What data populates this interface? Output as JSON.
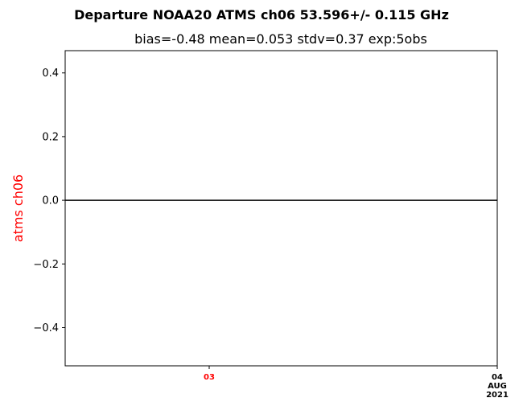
{
  "chart_data": {
    "type": "line",
    "title": "Departure NOAA20 ATMS ch06 53.596+/- 0.115 GHz",
    "subtitle": "bias=-0.48  mean=0.053  stdv=0.37  exp:5obs",
    "ylabel": "atms ch06",
    "xlabel": "",
    "ylim": [
      -0.52,
      0.47
    ],
    "yticks": [
      0.4,
      0.2,
      0.0,
      -0.2,
      -0.4
    ],
    "ytick_labels": [
      "0.4",
      "0.2",
      "0.0",
      "−0.2",
      "−0.4"
    ],
    "x_range": [
      "2021-08-02T12:00",
      "2021-08-04T00:00"
    ],
    "xticks": [
      {
        "x": "2021-08-03T00:00",
        "lines": [
          "03"
        ],
        "color": "#ff0000"
      },
      {
        "x": "2021-08-04T00:00",
        "lines": [
          "04",
          "AUG",
          "2021"
        ],
        "color": "#000000"
      }
    ],
    "reference_line": {
      "y": 0.0,
      "color": "#000000"
    },
    "series": [],
    "grid": false,
    "legend": "none"
  },
  "colors": {
    "ylabel": "#ff0000",
    "axes": "#000000"
  }
}
